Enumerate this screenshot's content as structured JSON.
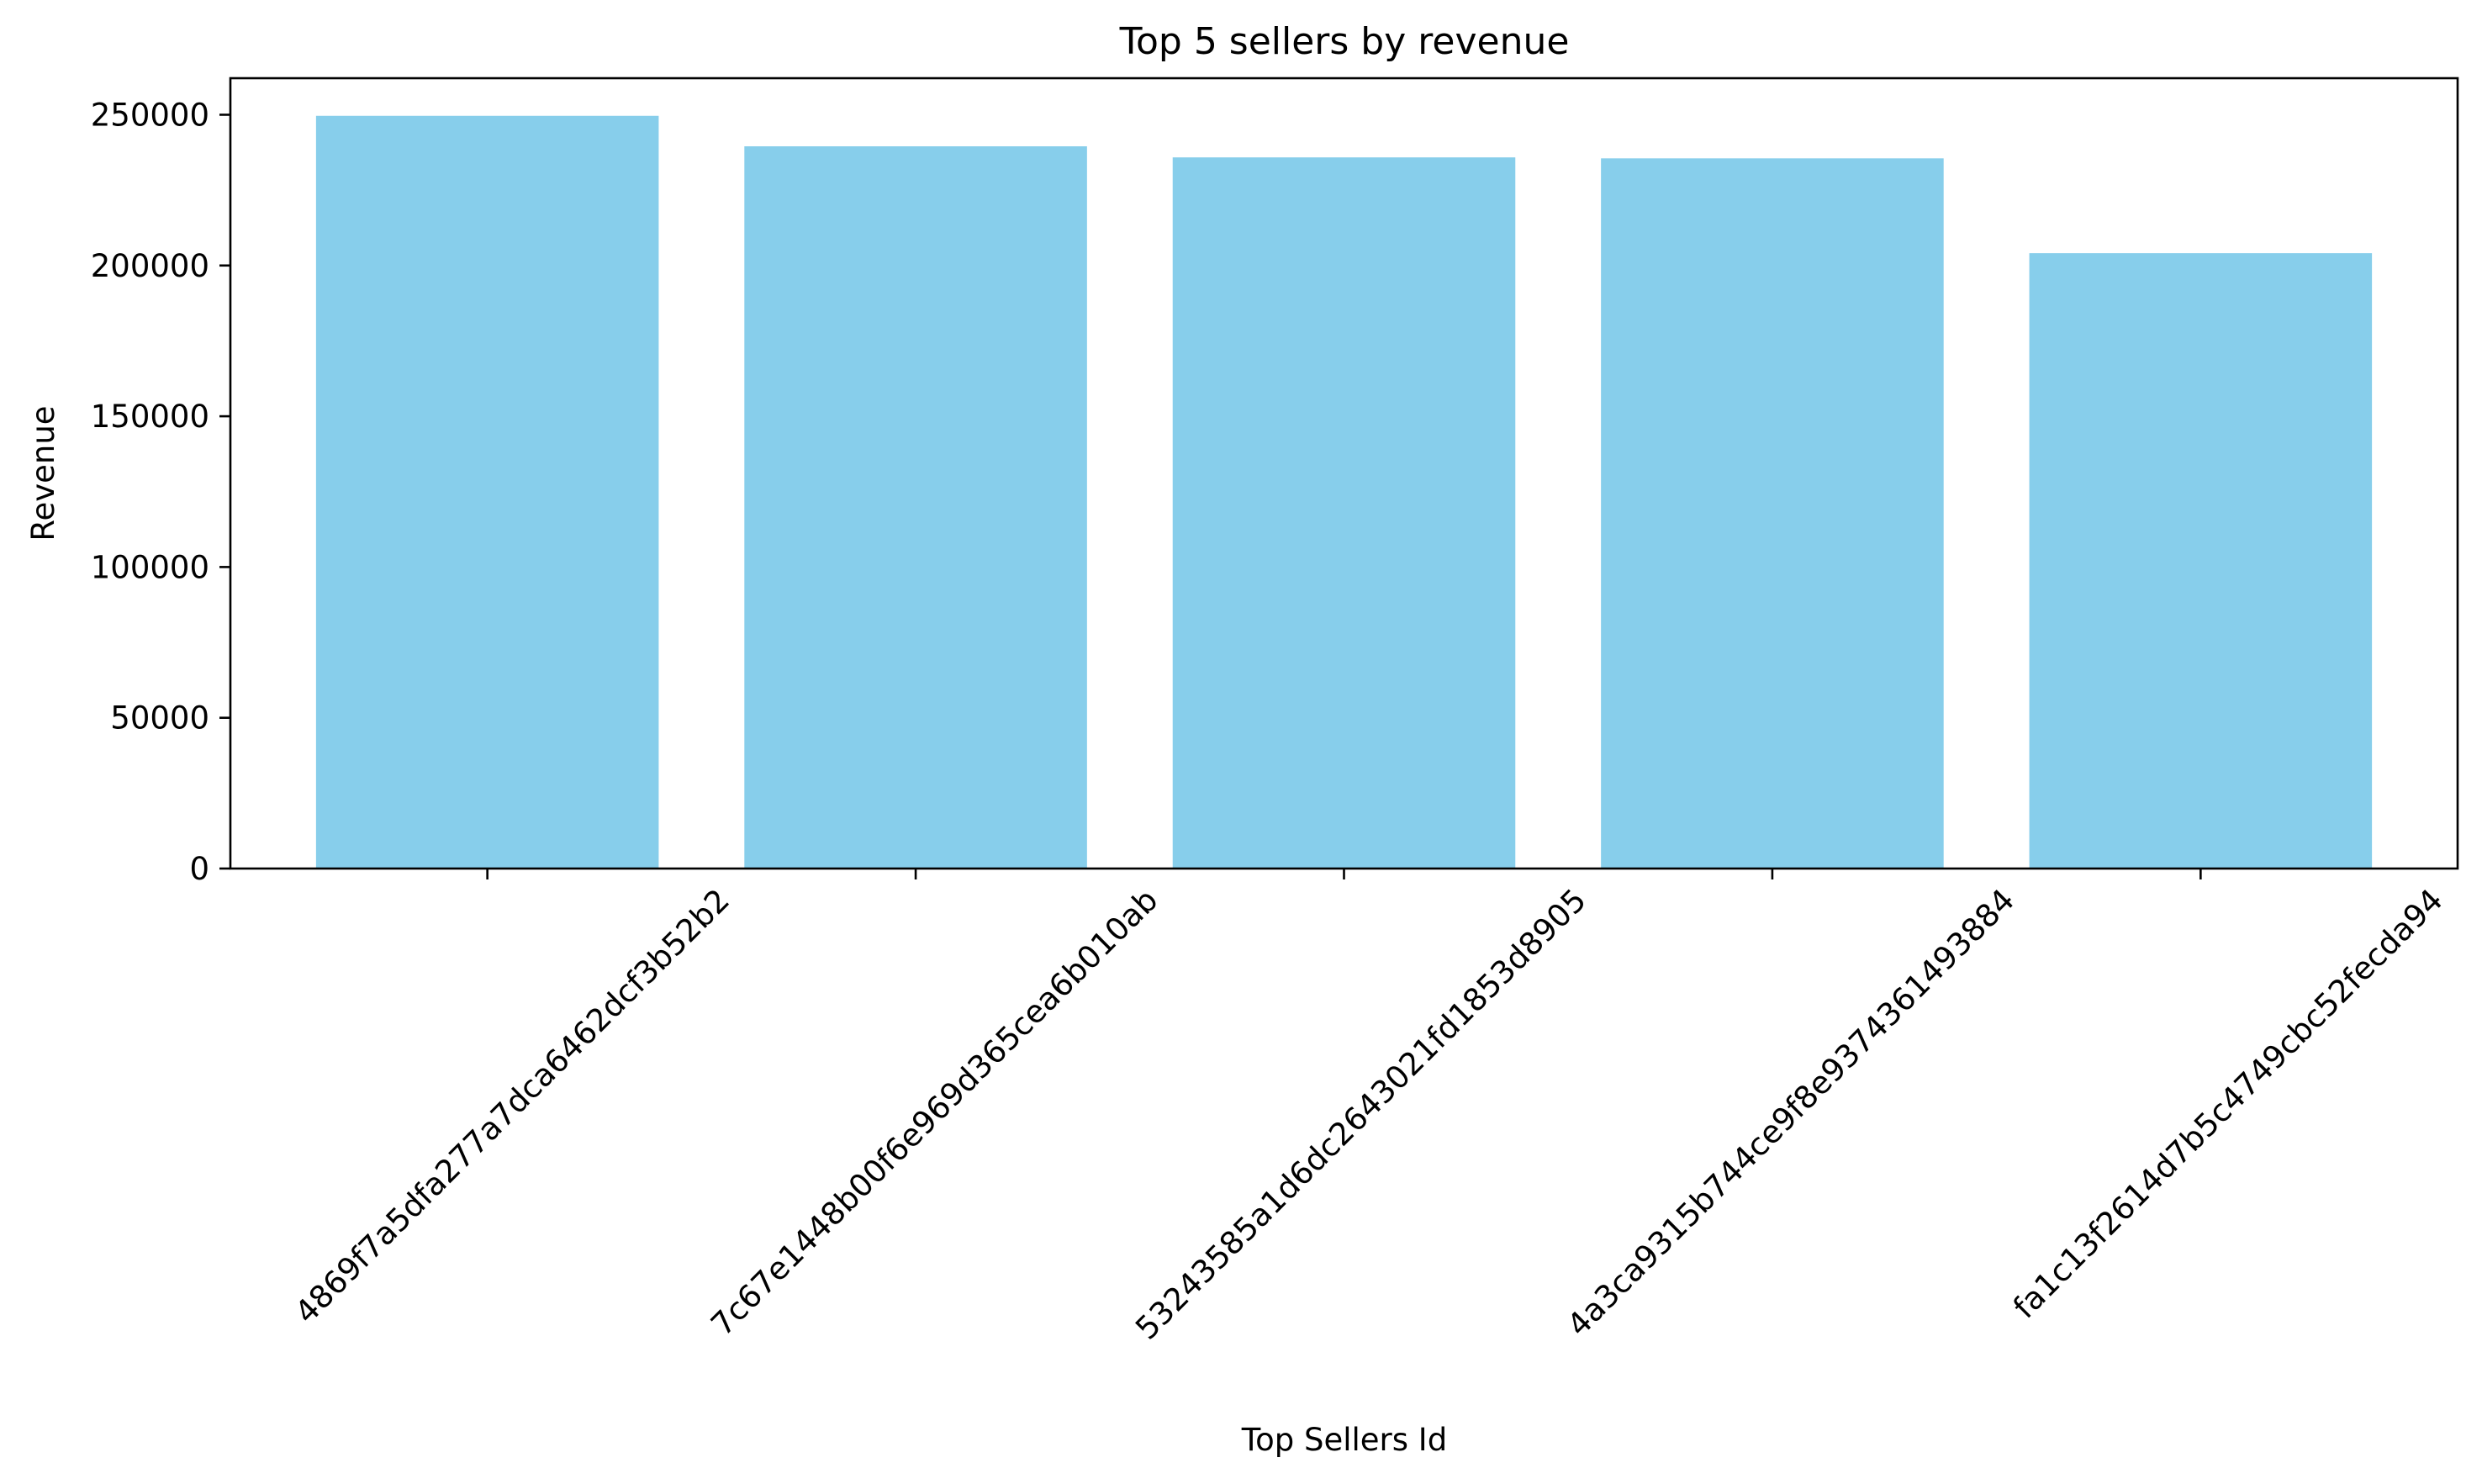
{
  "chart_data": {
    "type": "bar",
    "title": "Top 5 sellers by revenue",
    "xlabel": "Top Sellers Id",
    "ylabel": "Revenue",
    "categories": [
      "4869f7a5dfa277a7dca6462dcf3b52b2",
      "7c67e1448b00f6e969d365cea6b010ab",
      "53243585a1d6dc2643021fd1853d8905",
      "4a3ca9315b744ce9f8e9374361493884",
      "fa1c13f2614d7b5c4749cbc52fecda94"
    ],
    "values": [
      249640,
      239536,
      235856,
      235539,
      204085
    ],
    "ylim": [
      0,
      262122
    ],
    "yticks": [
      0,
      50000,
      100000,
      150000,
      200000,
      250000
    ],
    "ytick_labels": [
      "0",
      "50000",
      "100000",
      "150000",
      "200000",
      "250000"
    ],
    "bar_color": "#87ceeb",
    "grid": false,
    "legend": "none"
  }
}
